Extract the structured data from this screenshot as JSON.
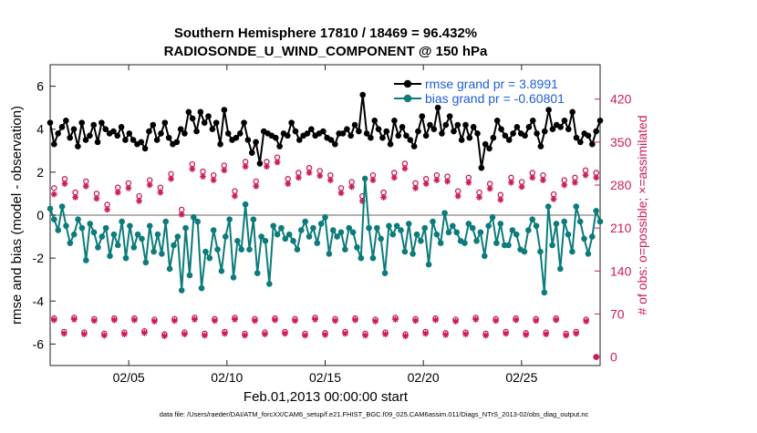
{
  "chart_data": {
    "type": "line",
    "title_line1": "Southern Hemisphere 17810 / 18469 = 96.432%",
    "title_line2": "RADIOSONDE_U_WIND_COMPONENT @ 150 hPa",
    "xlabel": "Feb.01,2013 00:00:00 start",
    "ylabel_left": "rmse and bias (model - observation)",
    "ylabel_right": "# of obs: o=possible; ×=assimilated",
    "footer": "data file: /Users/raeder/DAI/ATM_forcXX/CAM6_setup/f.e21.FHIST_BGC.f09_025.CAM6assim.011/Diags_NTrS_2013-02/obs_diag_output.nc",
    "x_start_day": 1,
    "x_range_days": [
      1.0,
      29.0
    ],
    "x_ticks": [
      5,
      10,
      15,
      20,
      25
    ],
    "x_tick_labels": [
      "02/05",
      "02/10",
      "02/15",
      "02/20",
      "02/25"
    ],
    "ylim_left": [
      -7,
      7
    ],
    "y_ticks_left": [
      -6,
      -4,
      -2,
      0,
      2,
      4,
      6
    ],
    "y_tick_labels_left": [
      "-6",
      "-4",
      "-2",
      "0",
      "2",
      "4",
      "6"
    ],
    "ylim_right": [
      -14,
      476
    ],
    "y_ticks_right": [
      0,
      70,
      140,
      210,
      280,
      350,
      420
    ],
    "y_tick_labels_right": [
      "0",
      "70",
      "140",
      "210",
      "280",
      "350",
      "420"
    ],
    "zero_line": 0,
    "legend": {
      "rmse_label": "rmse grand pr = 3.8991",
      "bias_label": "bias grand pr = -0.60801"
    },
    "colors": {
      "rmse": "#000000",
      "bias": "#0d7b7b",
      "obs": "#cc1a5a",
      "legend_text": "#1f5fd8",
      "zero_line": "#b3b3b3"
    },
    "series_rmse": [
      4.3,
      3.3,
      3.8,
      4.1,
      4.4,
      3.6,
      4.0,
      3.2,
      4.3,
      3.5,
      3.7,
      4.2,
      3.4,
      4.3,
      4.0,
      3.8,
      3.9,
      3.7,
      4.1,
      3.5,
      3.8,
      3.5,
      3.3,
      3.4,
      3.1,
      3.9,
      4.2,
      3.5,
      3.8,
      4.3,
      3.6,
      3.3,
      3.4,
      4.0,
      3.8,
      4.8,
      4.5,
      3.9,
      4.8,
      4.3,
      4.6,
      4.0,
      4.3,
      3.3,
      4.9,
      3.8,
      3.5,
      3.6,
      3.8,
      4.3,
      3.5,
      2.9,
      3.4,
      2.4,
      3.9,
      3.8,
      3.7,
      3.6,
      3.2,
      3.8,
      3.7,
      4.3,
      3.9,
      3.5,
      3.7,
      3.8,
      4.0,
      3.7,
      3.8,
      3.9,
      3.6,
      3.5,
      3.3,
      3.8,
      3.8,
      4.0,
      3.7,
      4.2,
      3.9,
      5.6,
      3.8,
      3.6,
      4.4,
      4.0,
      3.6,
      3.9,
      3.3,
      4.4,
      3.7,
      4.1,
      3.7,
      3.5,
      3.2,
      3.9,
      4.6,
      3.7,
      4.2,
      4.0,
      5.0,
      3.8,
      4.2,
      4.6,
      3.9,
      4.2,
      3.5,
      4.2,
      3.6,
      4.1,
      3.8,
      2.2,
      3.3,
      3.1,
      3.6,
      4.4,
      4.0,
      3.7,
      3.5,
      3.8,
      4.1,
      3.8,
      3.7,
      4.1,
      4.4,
      3.8,
      3.2,
      3.9,
      4.9,
      4.0,
      4.2,
      4.1,
      4.4,
      4.0,
      4.8,
      3.6,
      3.4,
      3.8,
      3.7,
      3.3,
      3.9,
      4.4
    ],
    "series_bias": [
      0.3,
      -0.2,
      -0.7,
      0.4,
      -0.5,
      -1.3,
      -0.9,
      -0.2,
      -0.6,
      -2.1,
      -0.4,
      -0.8,
      -1.5,
      -1.0,
      -0.6,
      -1.9,
      -0.9,
      -1.4,
      -0.3,
      -2.0,
      -0.5,
      -1.5,
      -0.9,
      -1.1,
      -2.2,
      -0.5,
      -1.7,
      -0.9,
      -1.8,
      -0.3,
      -2.5,
      -1.4,
      -1.0,
      -3.5,
      -0.6,
      -2.8,
      -0.1,
      -0.3,
      -3.4,
      -1.7,
      -2.0,
      -0.7,
      -1.6,
      -2.6,
      -1.0,
      -0.2,
      -2.9,
      -1.2,
      -1.6,
      0.5,
      -1.6,
      -0.2,
      -2.7,
      -1.0,
      -1.2,
      -3.2,
      -0.5,
      -0.9,
      -0.6,
      -1.1,
      -0.9,
      -1.2,
      -1.6,
      -0.7,
      -0.3,
      -1.0,
      -0.6,
      -1.3,
      -0.4,
      -0.1,
      -1.8,
      -0.7,
      -1.0,
      -0.8,
      -1.6,
      -0.6,
      -0.8,
      -1.5,
      -2.0,
      1.7,
      -0.6,
      -2.0,
      -0.6,
      -1.1,
      -2.7,
      -0.5,
      -0.9,
      -0.5,
      -0.7,
      -1.7,
      -0.4,
      -1.8,
      -0.9,
      -1.2,
      -0.6,
      -2.3,
      -0.3,
      -0.9,
      -1.3,
      0.1,
      -0.8,
      -0.5,
      -0.8,
      -1.2,
      -1.3,
      -0.4,
      -0.6,
      -1.2,
      -0.8,
      -1.9,
      -0.5,
      -0.1,
      -1.3,
      -0.4,
      -1.4,
      -1.4,
      -0.7,
      -0.9,
      -1.6,
      -1.7,
      -0.7,
      -0.2,
      -0.5,
      -1.7,
      -3.6,
      0.4,
      -1.4,
      -0.4,
      -2.5,
      -0.3,
      -0.9,
      -1.7,
      0.4,
      -0.3,
      -1.1,
      -1.8,
      -1.0,
      0.2,
      -0.3
    ],
    "obs_possible_high": [
      275,
      290,
      268,
      286,
      266,
      248,
      276,
      283,
      262,
      288,
      276,
      298,
      240,
      314,
      302,
      296,
      312,
      270,
      318,
      286,
      318,
      325,
      290,
      300,
      308,
      303,
      296,
      275,
      285,
      262,
      296,
      268,
      300,
      315,
      283,
      290,
      296,
      294,
      270,
      292,
      268,
      282,
      264,
      292,
      285,
      300,
      296,
      265,
      288,
      292,
      304,
      300
    ],
    "obs_possible_low": [
      63,
      41,
      64,
      40,
      62,
      38,
      63,
      40,
      63,
      42,
      61,
      37,
      62,
      40,
      64,
      38,
      62,
      41,
      64,
      38,
      62,
      40,
      63,
      41,
      62,
      38,
      64,
      39,
      62,
      41,
      63,
      38,
      61,
      40,
      64,
      37,
      62,
      41,
      63,
      39,
      61,
      40,
      64,
      38,
      62,
      41,
      63,
      39,
      62,
      40,
      63,
      38,
      41,
      61,
      0
    ],
    "obs_assimilated_high": [
      265,
      282,
      260,
      278,
      258,
      240,
      268,
      275,
      254,
      280,
      268,
      290,
      232,
      306,
      294,
      288,
      304,
      262,
      310,
      278,
      310,
      317,
      282,
      292,
      300,
      295,
      288,
      267,
      277,
      254,
      288,
      260,
      292,
      307,
      275,
      282,
      288,
      286,
      262,
      284,
      260,
      274,
      256,
      284,
      277,
      292,
      288,
      257,
      280,
      284,
      296,
      292
    ],
    "obs_assimilated_low": [
      60,
      38,
      61,
      37,
      59,
      35,
      60,
      37,
      60,
      39,
      58,
      34,
      59,
      37,
      61,
      35,
      59,
      38,
      61,
      35,
      59,
      37,
      60,
      38,
      59,
      35,
      61,
      36,
      59,
      38,
      60,
      35,
      58,
      37,
      61,
      34,
      59,
      38,
      60,
      36,
      58,
      37,
      61,
      35,
      59,
      38,
      60,
      36,
      59,
      37,
      60,
      35,
      38,
      58,
      0
    ]
  }
}
